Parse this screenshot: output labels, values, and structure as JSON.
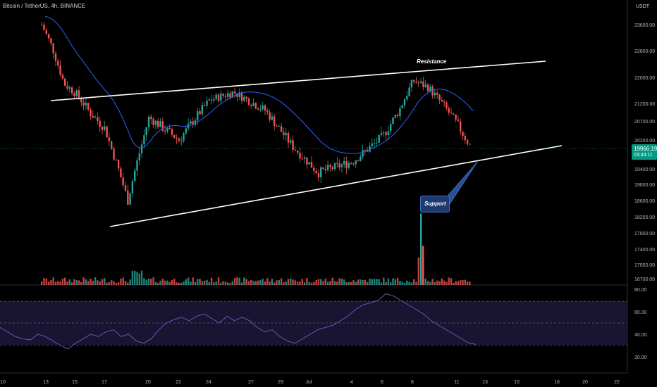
{
  "header": {
    "symbol_line": "Bitcoin / TetherUS, 4h, BINANCE",
    "currency": "USDT"
  },
  "price_tag": {
    "price": "19966.19",
    "countdown": "03:44:11"
  },
  "annotations": {
    "resistance_label": "Resistance",
    "support_label": "Support"
  },
  "colors": {
    "up": "#26a69a",
    "down": "#ef5350",
    "ma": "#2962ff",
    "rsi": "#7e57c2",
    "rsi_band": "#1a1433",
    "trendline": "#ffffff",
    "last_price_line": "#089981"
  },
  "chart_data": [
    {
      "type": "candlestick",
      "price_axis_ticks": [
        "23600.00",
        "22800.00",
        "22000.00",
        "21200.00",
        "20700.00",
        "20200.00",
        "19400.00",
        "19000.00",
        "18600.00",
        "18200.00",
        "17800.00",
        "17400.00",
        "17050.00",
        "16700.00"
      ],
      "date_axis_ticks": [
        "10",
        "13",
        "15",
        "17",
        "20",
        "22",
        "24",
        "27",
        "29",
        "Jul",
        "4",
        "6",
        "8",
        "11",
        "13",
        "15",
        "18",
        "20",
        "22"
      ],
      "ohlc_path_keypoints": [
        {
          "date": "Jun 12",
          "price": 23600
        },
        {
          "date": "Jun 13",
          "price": 22900
        },
        {
          "date": "Jun 14",
          "price": 21800
        },
        {
          "date": "Jun 15",
          "price": 21500
        },
        {
          "date": "Jun 16",
          "price": 20900
        },
        {
          "date": "Jun 17",
          "price": 20500
        },
        {
          "date": "Jun 18",
          "price": 18600
        },
        {
          "date": "Jun 19",
          "price": 19800
        },
        {
          "date": "Jun 20",
          "price": 20800
        },
        {
          "date": "Jun 22",
          "price": 20200
        },
        {
          "date": "Jun 24",
          "price": 21300
        },
        {
          "date": "Jun 26",
          "price": 21550
        },
        {
          "date": "Jun 28",
          "price": 21000
        },
        {
          "date": "Jun 30",
          "price": 20000
        },
        {
          "date": "Jul 2",
          "price": 19300
        },
        {
          "date": "Jul 4",
          "price": 19600
        },
        {
          "date": "Jul 6",
          "price": 20300
        },
        {
          "date": "Jul 7",
          "price": 21000
        },
        {
          "date": "Jul 8",
          "price": 21900
        },
        {
          "date": "Jul 9",
          "price": 21700
        },
        {
          "date": "Jul 10",
          "price": 21200
        },
        {
          "date": "Jul 11",
          "price": 20600
        },
        {
          "date": "Jul 12",
          "price": 19966
        }
      ],
      "last_price": 19966.19,
      "resistance_line": [
        {
          "date": "Jun 15",
          "price": 21350
        },
        {
          "date": "Jul 16",
          "price": 22250
        }
      ],
      "support_line": [
        {
          "date": "Jun 17",
          "price": 18050
        },
        {
          "date": "Jul 17",
          "price": 20050
        }
      ],
      "moving_average": true,
      "volume": true,
      "grid": false
    },
    {
      "type": "line",
      "name": "RSI",
      "y_axis_ticks": [
        "80.00",
        "60.00",
        "40.00",
        "20.00"
      ],
      "levels": [
        70,
        50,
        30
      ],
      "values": [
        46,
        42,
        38,
        36,
        35,
        40,
        38,
        34,
        30,
        27,
        32,
        36,
        40,
        38,
        42,
        44,
        38,
        40,
        34,
        32,
        36,
        44,
        50,
        53,
        55,
        52,
        56,
        58,
        54,
        50,
        56,
        52,
        55,
        52,
        46,
        42,
        44,
        38,
        34,
        32,
        36,
        40,
        44,
        46,
        48,
        52,
        56,
        62,
        66,
        68,
        70,
        76,
        74,
        70,
        66,
        62,
        58,
        52,
        48,
        44,
        40,
        36,
        32,
        31
      ]
    }
  ]
}
